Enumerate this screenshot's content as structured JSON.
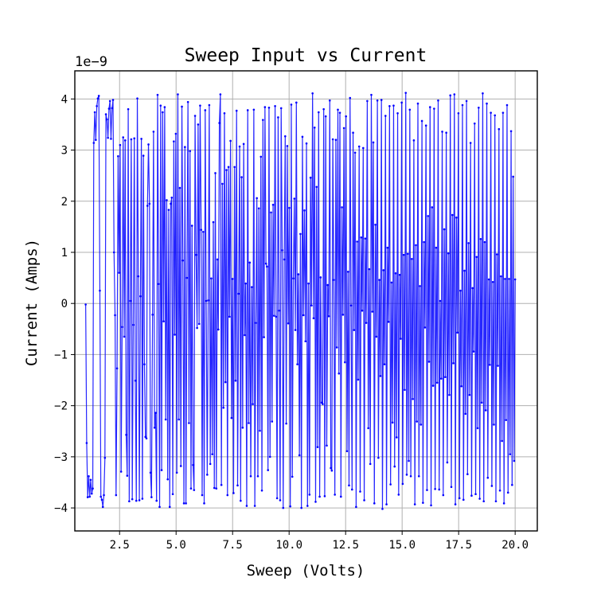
{
  "chart_data": {
    "type": "line",
    "title": "Sweep Input vs Current",
    "xlabel": "Sweep (Volts)",
    "ylabel": "Current (Amps)",
    "y_offset_label": "1e−9",
    "xlim": [
      0.52,
      20.98
    ],
    "ylim": [
      -4.45,
      4.55
    ],
    "xticks": [
      2.5,
      5.0,
      7.5,
      10.0,
      12.5,
      15.0,
      17.5,
      20.0
    ],
    "xtick_labels": [
      "2.5",
      "5.0",
      "7.5",
      "10.0",
      "12.5",
      "15.0",
      "17.5",
      "20.0"
    ],
    "yticks": [
      -4,
      -3,
      -2,
      -1,
      0,
      1,
      2,
      3,
      4
    ],
    "ytick_labels": [
      "−4",
      "−3",
      "−2",
      "−1",
      "0",
      "1",
      "2",
      "3",
      "4"
    ],
    "grid": true,
    "line_color": "#0000ff",
    "series": [
      {
        "x_start": 1.0,
        "x_end": 20.0,
        "x_step": 0.038,
        "y_scale": 1e-09,
        "y": [
          -0.02,
          -2.73,
          -3.79,
          -3.38,
          -3.78,
          -3.45,
          -3.72,
          -3.62,
          3.14,
          3.74,
          3.2,
          3.86,
          4.01,
          4.06,
          0.25,
          -3.78,
          -3.84,
          -3.98,
          -3.75,
          -3.02,
          3.7,
          3.6,
          3.24,
          3.81,
          3.96,
          3.22,
          3.82,
          3.98,
          1.0,
          -0.23,
          -3.75,
          -1.27,
          2.88,
          0.6,
          3.1,
          -3.29,
          -0.46,
          3.25,
          -0.65,
          3.19,
          -2.57,
          -3.37,
          3.8,
          -3.87,
          0.05,
          3.21,
          -3.83,
          -0.42,
          3.23,
          -1.51,
          -3.86,
          4.01,
          0.53,
          -3.85,
          0.14,
          3.22,
          -3.82,
          2.89,
          -1.19,
          -2.61,
          -2.64,
          1.91,
          3.11,
          1.95,
          -3.31,
          -3.79,
          -0.22,
          3.36,
          -2.43,
          -2.14,
          -3.86,
          4.08,
          0.38,
          -3.98,
          3.87,
          -3.26,
          3.74,
          -0.35,
          3.84,
          -2.27,
          2.02,
          -3.44,
          1.83,
          -3.98,
          1.95,
          2.07,
          -3.73,
          3.17,
          -0.61,
          3.32,
          -3.31,
          4.09,
          -2.27,
          2.26,
          -3.18,
          3.85,
          0.84,
          -3.91,
          3.06,
          -3.91,
          0.5,
          3.94,
          -2.34,
          2.98,
          -3.62,
          1.52,
          -3.16,
          -3.65,
          3.67,
          0.95,
          -0.48,
          3.5,
          -0.4,
          3.87,
          1.44,
          -3.75,
          1.4,
          -3.91,
          3.78,
          0.05,
          -3.35,
          0.06,
          3.88,
          -3.14,
          0.49,
          -2.95,
          1.59,
          -3.61,
          2.55,
          -3.62,
          0.86,
          -0.51,
          3.53,
          4.09,
          -3.55,
          2.34,
          -2.04,
          3.72,
          -1.54,
          2.61,
          -3.75,
          2.67,
          -0.26,
          3.18,
          -2.24,
          0.48,
          -3.71,
          2.67,
          -1.51,
          3.77,
          -3.56,
          0.19,
          3.07,
          -3.86,
          2.47,
          -2.43,
          3.12,
          -0.62,
          0.39,
          -3.96,
          3.78,
          -2.34,
          0.8,
          -3.38,
          0.32,
          -1.97,
          3.79,
          -3.96,
          -0.38,
          2.06,
          -3.38,
          1.86,
          -2.49,
          2.87,
          -3.66,
          3.59,
          -0.66,
          3.84,
          0.78,
          0.72,
          -3.26,
          3.83,
          -3.0,
          1.78,
          -2.31,
          1.93,
          -0.24,
          3.86,
          -0.26,
          -3.81,
          3.64,
          -0.14,
          -3.85,
          3.82,
          1.04,
          -4.0,
          0.86,
          3.27,
          -2.35,
          3.08,
          -0.39,
          1.87,
          -3.97,
          3.89,
          -3.39,
          0.49,
          2.05,
          -0.52,
          3.93,
          -1.19,
          0.57,
          -2.97,
          1.36,
          -4.0,
          3.26,
          -0.23,
          1.82,
          -0.74,
          3.13,
          -3.96,
          0.39,
          -3.74,
          2.46,
          -0.04,
          4.11,
          -0.29,
          3.44,
          -3.88,
          2.28,
          -2.81,
          3.74,
          -3.78,
          0.51,
          -1.94,
          -1.97,
          3.8,
          -3.77,
          3.66,
          -2.78,
          0.36,
          -0.25,
          3.97,
          -3.22,
          -3.27,
          3.21,
          0.46,
          -3.74,
          3.2,
          -0.86,
          3.79,
          -1.37,
          3.73,
          -3.78,
          1.88,
          -0.22,
          3.43,
          -1.15,
          3.66,
          -2.89,
          0.62,
          -3.56,
          4.02,
          -0.04,
          -3.64,
          3.34,
          -0.52,
          2.95,
          -3.98,
          1.21,
          -1.49,
          3.07,
          -3.68,
          1.29,
          -0.14,
          3.04,
          -3.85,
          1.27,
          -0.38,
          3.96,
          -2.44,
          0.67,
          -3.14,
          4.08,
          -0.16,
          3.15,
          -3.91,
          1.54,
          -0.65,
          3.97,
          -3.02,
          0.46,
          -1.42,
          3.98,
          -4.02,
          0.65,
          -1.19,
          3.67,
          -3.93,
          1.09,
          -0.36,
          3.86,
          -3.54,
          0.41,
          -2.33,
          3.87,
          -3.19,
          0.59,
          -2.62,
          3.72,
          -3.74,
          0.56,
          -0.69,
          3.93,
          -3.53,
          0.95,
          -1.69,
          4.12,
          -3.35,
          0.97,
          -3.08,
          3.79,
          -3.38,
          0.87,
          -1.87,
          3.19,
          -3.93,
          1.14,
          -2.31,
          3.91,
          -3.38,
          0.34,
          -2.37,
          3.57,
          -3.9,
          1.2,
          -0.47,
          3.48,
          -3.65,
          1.71,
          -1.14,
          3.84,
          -3.95,
          1.88,
          -1.61,
          3.81,
          -3.63,
          1.09,
          -1.55,
          3.97,
          -3.64,
          0.05,
          -1.47,
          3.36,
          -3.75,
          1.45,
          -1.44,
          3.34,
          -3.11,
          0.98,
          -1.79,
          4.07,
          -3.59,
          1.73,
          -1.17,
          4.09,
          -3.93,
          1.68,
          -0.57,
          3.72,
          -3.81,
          0.25,
          -1.62,
          3.88,
          -3.84,
          0.64,
          -2.16,
          3.96,
          -3.34,
          1.18,
          -1.79,
          3.14,
          -3.76,
          0.3,
          -0.94,
          3.52,
          -3.73,
          0.91,
          -2.44,
          3.83,
          -3.82,
          1.26,
          -1.94,
          4.11,
          -3.87,
          1.2,
          -2.09,
          3.91,
          -3.41,
          0.47,
          -1.2,
          3.73,
          -3.57,
          0.42,
          -2.37,
          3.68,
          -3.87,
          0.96,
          -1.22,
          3.41,
          -3.66,
          0.53,
          -2.69,
          3.73,
          -3.91,
          0.48,
          -2.28,
          3.88,
          -3.7,
          0.48,
          -2.95,
          3.37,
          -3.55,
          2.48,
          -3.08,
          0.47
        ]
      }
    ]
  }
}
